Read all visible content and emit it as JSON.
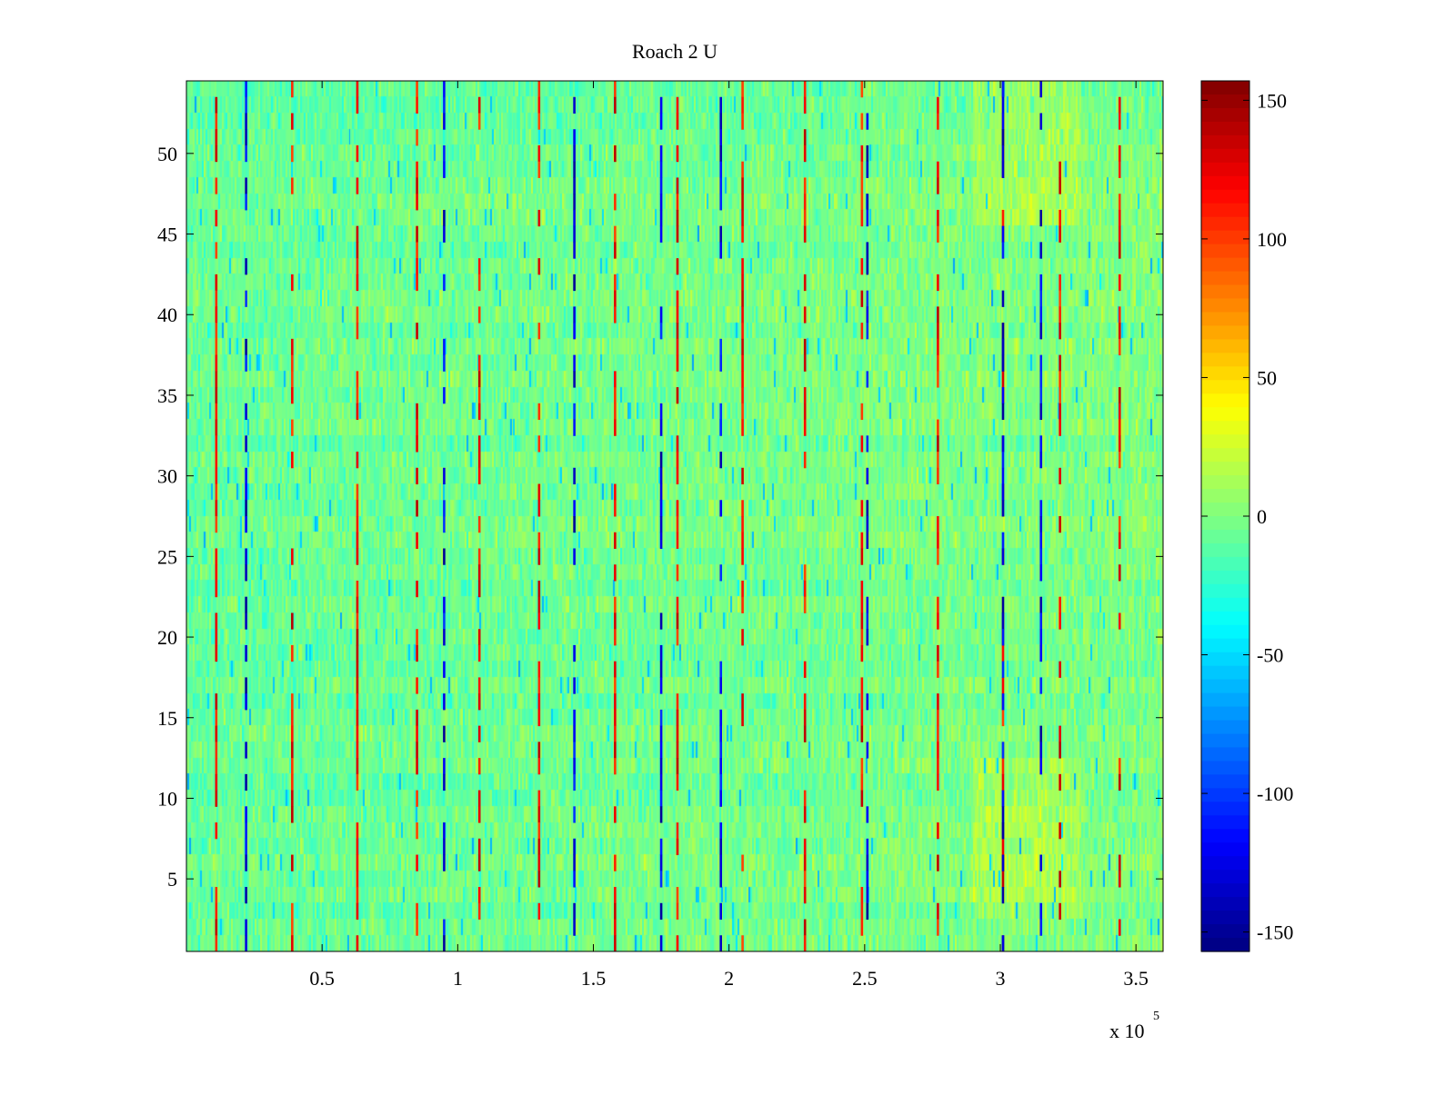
{
  "chart_data": {
    "type": "heatmap",
    "title": "Roach 2 U",
    "xlabel": "",
    "ylabel": "",
    "x_exponent_label": "x 10",
    "x_exponent_power": "5",
    "xlim": [
      0.0,
      3.6
    ],
    "ylim": [
      0.5,
      54.5
    ],
    "x_ticks": [
      0.5,
      1.0,
      1.5,
      2.0,
      2.5,
      3.0,
      3.5
    ],
    "x_tick_labels": [
      "0.5",
      "1",
      "1.5",
      "2",
      "2.5",
      "3",
      "3.5"
    ],
    "y_ticks": [
      5,
      10,
      15,
      20,
      25,
      30,
      35,
      40,
      45,
      50
    ],
    "y_tick_labels": [
      "5",
      "10",
      "15",
      "20",
      "25",
      "30",
      "35",
      "40",
      "45",
      "50"
    ],
    "colorbar": {
      "clim": [
        -157,
        157
      ],
      "ticks": [
        150,
        100,
        50,
        0,
        -50,
        -100,
        -150
      ],
      "tick_labels": [
        "150",
        "100",
        "50",
        "0",
        "-50",
        "-100",
        "-150"
      ],
      "colormap": "jet"
    },
    "rows": 54,
    "grid": false,
    "positive_stripe_x": [
      0.11,
      0.39,
      0.63,
      0.85,
      1.08,
      1.3,
      1.58,
      1.81,
      2.05,
      2.28,
      2.49,
      2.77,
      3.01,
      3.22,
      3.44
    ],
    "negative_stripe_x": [
      0.22,
      0.95,
      1.43,
      1.75,
      1.97,
      2.51,
      3.01,
      3.15
    ],
    "warm_region": {
      "x_range": [
        2.9,
        3.3
      ],
      "y_top_rows": [
        46,
        54
      ],
      "y_bottom_rows": [
        3,
        12
      ]
    }
  }
}
